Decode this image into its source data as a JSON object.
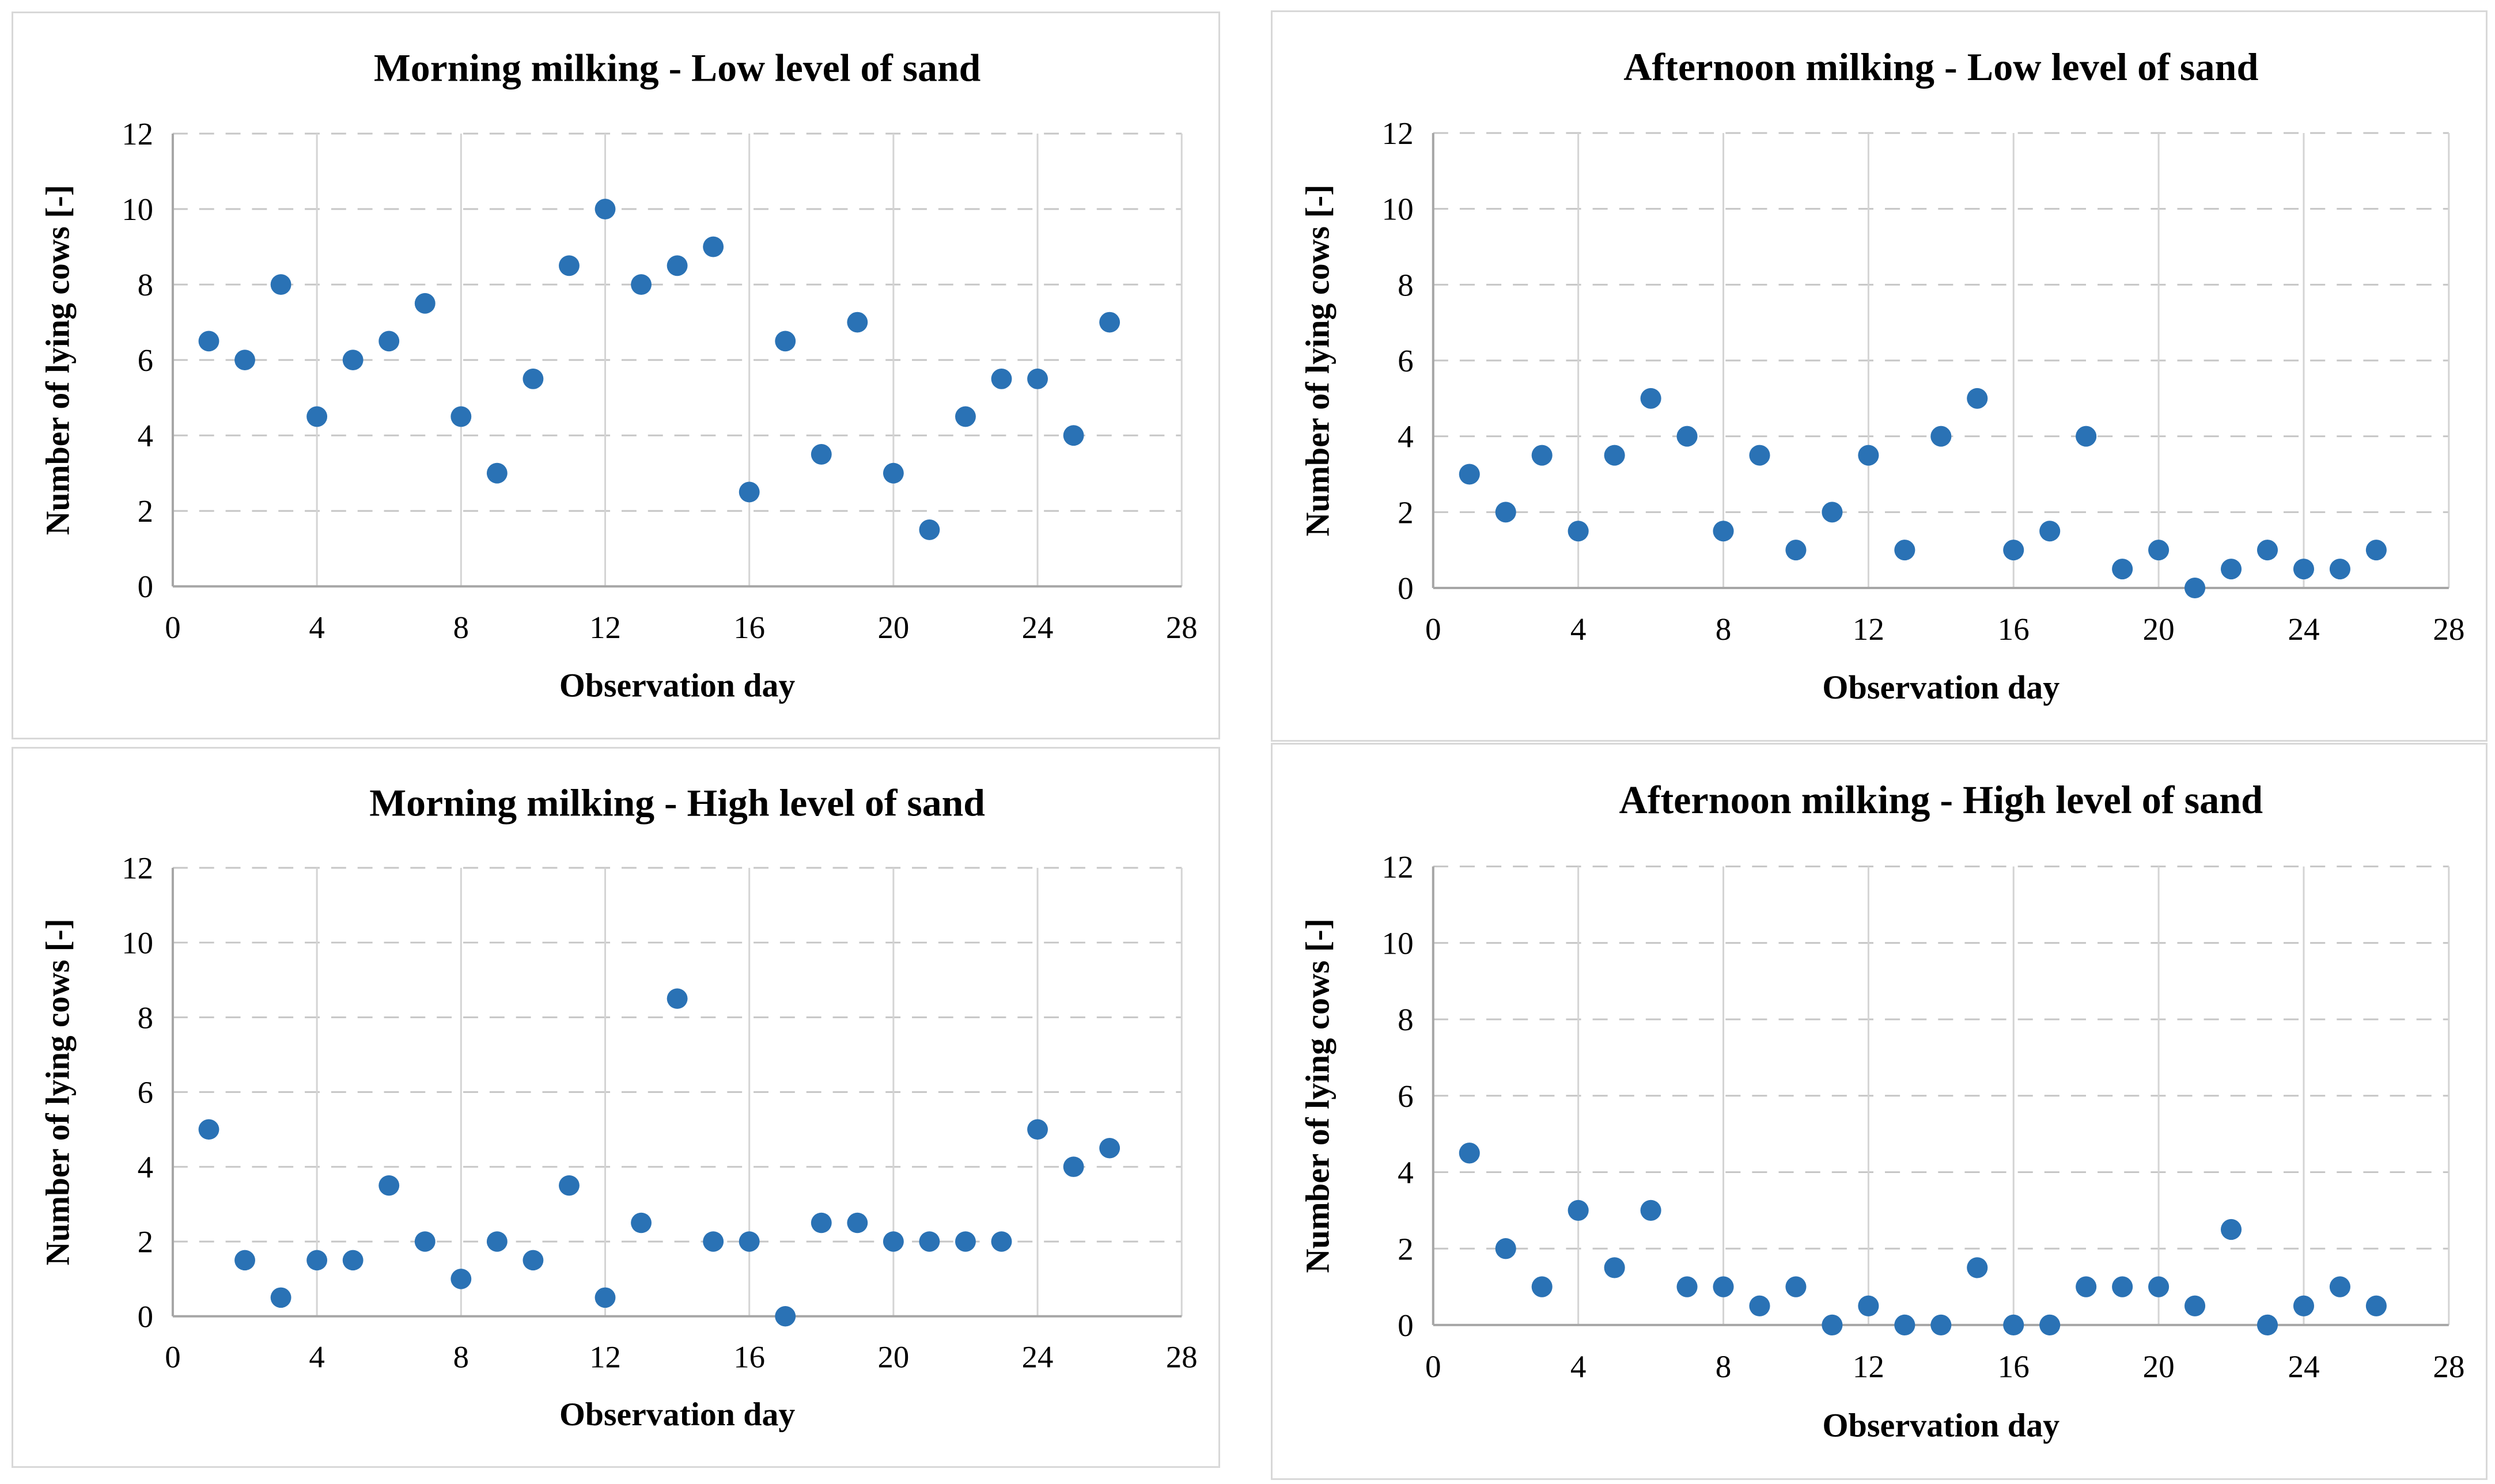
{
  "figure": {
    "background": "#ffffff",
    "layout": "2x2 grid of scatter plots"
  },
  "style": {
    "marker_color": "#2A72B5",
    "dashed_grid_color": "#c6c6c6",
    "solid_grid_color": "#d4d4d4",
    "axis_line_color": "#a6a6a6",
    "panel_border_color": "#d8d8d8",
    "text_color": "#000000"
  },
  "chart_data": [
    {
      "type": "scatter",
      "title": "Morning milking - Low level of sand",
      "xlabel": "Observation day",
      "ylabel": "Number of lying cows [-]",
      "xlim": [
        0,
        28
      ],
      "ylim": [
        0,
        12
      ],
      "xticks": [
        0,
        4,
        8,
        12,
        16,
        20,
        24,
        28
      ],
      "yticks": [
        0,
        2,
        4,
        6,
        8,
        10,
        12
      ],
      "grid": {
        "horizontal": "dashed",
        "vertical": "solid"
      },
      "legend": "none",
      "x": [
        1,
        2,
        3,
        4,
        5,
        6,
        7,
        8,
        9,
        10,
        11,
        12,
        13,
        14,
        15,
        16,
        17,
        18,
        19,
        20,
        21,
        22,
        23,
        24,
        25,
        26
      ],
      "y": [
        6.5,
        6,
        8,
        4.5,
        6,
        6.5,
        7.5,
        4.5,
        3,
        5.5,
        8.5,
        10,
        8,
        8.5,
        9,
        2.5,
        6.5,
        3.5,
        7,
        3,
        1.5,
        4.5,
        5.5,
        5.5,
        4,
        7
      ]
    },
    {
      "type": "scatter",
      "title": "Afternoon milking - Low level of sand",
      "xlabel": "Observation day",
      "ylabel": "Number of lying cows [-]",
      "xlim": [
        0,
        28
      ],
      "ylim": [
        0,
        12
      ],
      "xticks": [
        0,
        4,
        8,
        12,
        16,
        20,
        24,
        28
      ],
      "yticks": [
        0,
        2,
        4,
        6,
        8,
        10,
        12
      ],
      "grid": {
        "horizontal": "dashed",
        "vertical": "solid"
      },
      "legend": "none",
      "x": [
        1,
        2,
        3,
        4,
        5,
        6,
        7,
        8,
        9,
        10,
        11,
        12,
        13,
        14,
        15,
        16,
        17,
        18,
        19,
        20,
        21,
        22,
        23,
        24,
        25,
        26
      ],
      "y": [
        3,
        2,
        3.5,
        1.5,
        3.5,
        5,
        4,
        1.5,
        3.5,
        1,
        2,
        3.5,
        1,
        4,
        5,
        1,
        1.5,
        4,
        0.5,
        1,
        0,
        0.5,
        1,
        0.5,
        0.5,
        1
      ]
    },
    {
      "type": "scatter",
      "title": "Morning milking - High level of sand",
      "xlabel": "Observation day",
      "ylabel": "Number of lying cows [-]",
      "xlim": [
        0,
        28
      ],
      "ylim": [
        0,
        12
      ],
      "xticks": [
        0,
        4,
        8,
        12,
        16,
        20,
        24,
        28
      ],
      "yticks": [
        0,
        2,
        4,
        6,
        8,
        10,
        12
      ],
      "grid": {
        "horizontal": "dashed",
        "vertical": "solid"
      },
      "legend": "none",
      "x": [
        1,
        2,
        3,
        4,
        5,
        6,
        7,
        8,
        9,
        10,
        11,
        12,
        13,
        14,
        15,
        16,
        17,
        18,
        19,
        20,
        21,
        22,
        23,
        24,
        25,
        26
      ],
      "y": [
        5,
        1.5,
        0.5,
        1.5,
        1.5,
        3.5,
        2,
        1,
        2,
        1.5,
        3.5,
        0.5,
        2.5,
        8.5,
        2,
        2,
        0,
        2.5,
        2.5,
        2,
        2,
        2,
        2,
        5,
        4,
        4.5
      ]
    },
    {
      "type": "scatter",
      "title": "Afternoon milking - High level of sand",
      "xlabel": "Observation day",
      "ylabel": "Number of lying cows [-]",
      "xlim": [
        0,
        28
      ],
      "ylim": [
        0,
        12
      ],
      "xticks": [
        0,
        4,
        8,
        12,
        16,
        20,
        24,
        28
      ],
      "yticks": [
        0,
        2,
        4,
        6,
        8,
        10,
        12
      ],
      "grid": {
        "horizontal": "dashed",
        "vertical": "solid"
      },
      "legend": "none",
      "x": [
        1,
        2,
        3,
        4,
        5,
        6,
        7,
        8,
        9,
        10,
        11,
        12,
        13,
        14,
        15,
        16,
        17,
        18,
        19,
        20,
        21,
        22,
        23,
        24,
        25,
        26
      ],
      "y": [
        4.5,
        2,
        1,
        3,
        1.5,
        3,
        1,
        1,
        0.5,
        1,
        0,
        0.5,
        0,
        0,
        1.5,
        0,
        0,
        1,
        1,
        1,
        0.5,
        2.5,
        0,
        0.5,
        1,
        0.5
      ]
    }
  ]
}
